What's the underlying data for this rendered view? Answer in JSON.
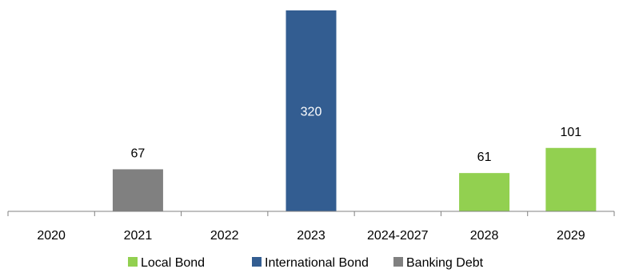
{
  "chart_data": {
    "type": "bar",
    "categories": [
      "2020",
      "2021",
      "2022",
      "2023",
      "2024-2027",
      "2028",
      "2029"
    ],
    "series": [
      {
        "name": "Local Bond",
        "values": [
          0,
          0,
          0,
          0,
          0,
          61,
          101
        ],
        "color": "#92d050"
      },
      {
        "name": "International Bond",
        "values": [
          0,
          0,
          0,
          320,
          0,
          0,
          0
        ],
        "color": "#335d91"
      },
      {
        "name": "Banking Debt",
        "values": [
          0,
          67,
          0,
          0,
          0,
          0,
          0
        ],
        "color": "#808080"
      }
    ],
    "data_labels": [
      {
        "category": "2021",
        "text": "67"
      },
      {
        "category": "2023",
        "text": "320",
        "inside": true
      },
      {
        "category": "2028",
        "text": "61"
      },
      {
        "category": "2029",
        "text": "101"
      }
    ],
    "ylim": [
      0,
      320
    ],
    "grid": false,
    "legend_position": "bottom",
    "title": "",
    "xlabel": "",
    "ylabel": ""
  }
}
